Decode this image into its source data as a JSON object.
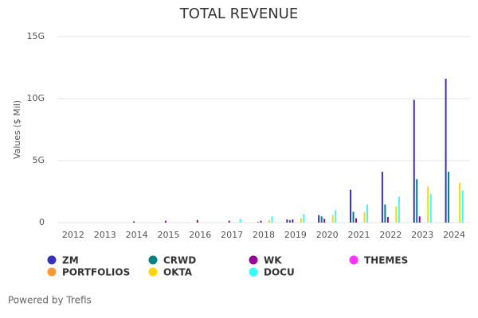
{
  "chart_data": {
    "type": "bar",
    "title": "TOTAL REVENUE",
    "y_label": "Values ($ Mil)",
    "categories": [
      "2012",
      "2013",
      "2014",
      "2015",
      "2016",
      "2017",
      "2018",
      "2019",
      "2020",
      "2021",
      "2022",
      "2023",
      "2024"
    ],
    "series": [
      {
        "name": "ZM",
        "color": "#3333bb",
        "values": [
          null,
          null,
          null,
          null,
          null,
          null,
          null,
          0.25,
          0.6,
          2.65,
          4.1,
          9.9,
          11.6
        ]
      },
      {
        "name": "CRWD",
        "color": "#008080",
        "values": [
          null,
          null,
          null,
          null,
          null,
          null,
          0.05,
          0.2,
          0.5,
          0.87,
          1.45,
          3.5,
          4.1
        ]
      },
      {
        "name": "WK",
        "color": "#990099",
        "values": [
          null,
          null,
          0.1,
          0.15,
          0.2,
          0.15,
          0.15,
          0.25,
          0.3,
          0.35,
          0.45,
          0.5,
          null
        ]
      },
      {
        "name": "THEMES",
        "color": "#ff33ff",
        "values": [
          null,
          null,
          null,
          null,
          null,
          null,
          null,
          null,
          null,
          null,
          null,
          null,
          null
        ]
      },
      {
        "name": "PORTFOLIOS",
        "color": "#ff9933",
        "values": [
          null,
          null,
          null,
          null,
          null,
          null,
          null,
          null,
          null,
          null,
          null,
          null,
          null
        ]
      },
      {
        "name": "OKTA",
        "color": "#ffd700",
        "values": [
          null,
          null,
          null,
          null,
          null,
          null,
          0.2,
          0.35,
          0.6,
          0.84,
          1.3,
          2.9,
          3.2
        ]
      },
      {
        "name": "DOCU",
        "color": "#33ffff",
        "values": [
          null,
          null,
          null,
          null,
          null,
          0.3,
          0.5,
          0.7,
          1.0,
          1.45,
          2.1,
          2.3,
          2.6
        ]
      }
    ],
    "ylim": [
      0,
      15
    ],
    "yticks": [
      0,
      {
        "value": 5,
        "label": "5G"
      },
      {
        "value": 10,
        "label": "10G"
      },
      {
        "value": 15,
        "label": "15G"
      }
    ],
    "grid": true,
    "footer": "Powered by Trefis"
  }
}
